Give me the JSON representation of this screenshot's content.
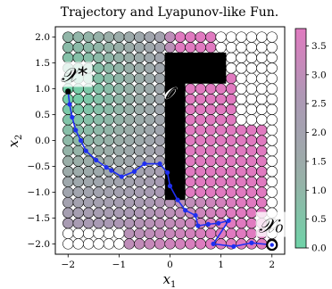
{
  "chart_data": {
    "type": "scatter",
    "title": "Trajectory and Lyapunov-like Fun.",
    "xlabel": "x",
    "xlabel_sub": "1",
    "ylabel": "x",
    "ylabel_sub": "2",
    "xlim": [
      -2.25,
      2.25
    ],
    "ylim": [
      -2.2,
      2.2
    ],
    "x_ticks": [
      -2,
      -1,
      0,
      1,
      2
    ],
    "x_tick_labels": [
      "−2",
      "−1",
      "0",
      "1",
      "2"
    ],
    "y_ticks": [
      -2.0,
      -1.5,
      -1.0,
      -0.5,
      0.0,
      0.5,
      1.0,
      1.5,
      2.0
    ],
    "y_tick_labels": [
      "−2.0",
      "−1.5",
      "−1.0",
      "−0.5",
      "0.0",
      "0.5",
      "1.0",
      "1.5",
      "2.0"
    ],
    "grid": false,
    "grid_step": 0.2,
    "grid_min": -2.0,
    "grid_max": 2.0,
    "colorbar": {
      "min": 0.0,
      "max": 3.8,
      "ticks": [
        0.0,
        0.5,
        1.0,
        1.5,
        2.0,
        2.5,
        3.0,
        3.5
      ],
      "tick_labels": [
        "0.0",
        "0.5",
        "1.0",
        "1.5",
        "2.0",
        "2.5",
        "3.0",
        "3.5"
      ],
      "colors": [
        "#6fd3a8",
        "#9aaea8",
        "#aa9ab4",
        "#e07ac0"
      ]
    },
    "obstacle": {
      "label": "𝒪",
      "vertical_bar": {
        "x": [
          -0.1,
          0.3
        ],
        "y": [
          -1.15,
          1.7
        ]
      },
      "horizontal_bar": {
        "x": [
          -0.1,
          1.1
        ],
        "y": [
          1.1,
          1.7
        ]
      },
      "color": "#000000"
    },
    "start": {
      "label": "𝒳₀",
      "x": 2.0,
      "y": -2.02
    },
    "goal": {
      "label": "𝒳*",
      "x": -2.0,
      "y": 0.95
    },
    "trajectory": {
      "color": "#1f2ff0",
      "x": [
        2.0,
        1.6,
        1.25,
        0.85,
        1.15,
        0.95,
        0.75,
        0.55,
        0.5,
        0.3,
        0.15,
        0.0,
        -0.05,
        -0.2,
        -0.5,
        -0.7,
        -0.95,
        -1.15,
        -1.25,
        -1.45,
        -1.65,
        -1.75,
        -1.85,
        -1.92,
        -1.97,
        -2.0
      ],
      "y": [
        -2.02,
        -1.98,
        -2.05,
        -2.0,
        -1.55,
        -1.6,
        -1.62,
        -1.65,
        -1.45,
        -1.35,
        -1.15,
        -0.88,
        -0.62,
        -0.45,
        -0.45,
        -0.6,
        -0.7,
        -0.58,
        -0.52,
        -0.38,
        -0.2,
        0.0,
        0.2,
        0.45,
        0.7,
        0.95
      ]
    }
  }
}
